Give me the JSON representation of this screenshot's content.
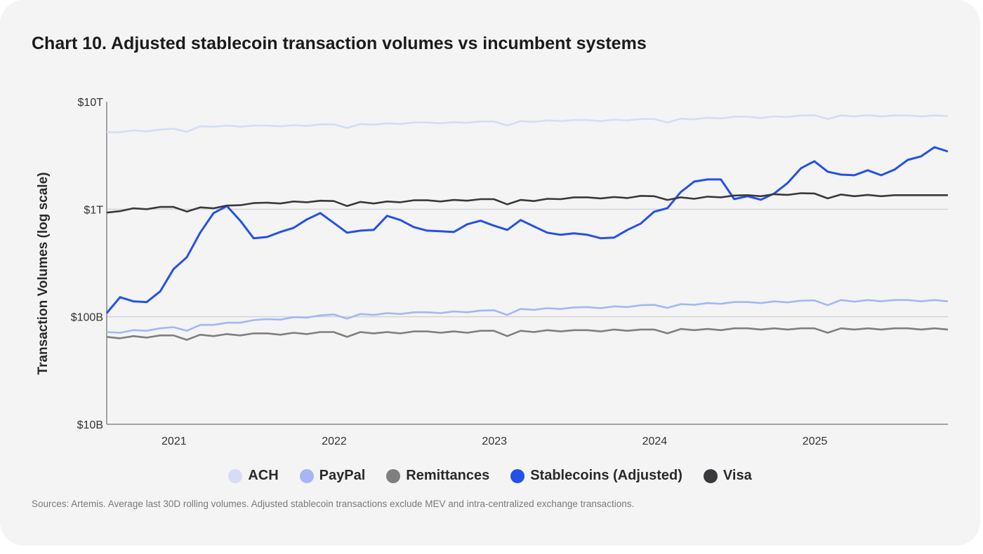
{
  "chart_data": {
    "type": "line",
    "title": "Chart 10. Adjusted stablecoin transaction volumes vs incumbent systems",
    "ylabel": "Transaction Volumes (log scale)",
    "xlabel": "",
    "yscale": "log",
    "ylim_billions": [
      10,
      10000
    ],
    "y_ticks": [
      {
        "value": 10,
        "label": "$10B"
      },
      {
        "value": 100,
        "label": "$100B"
      },
      {
        "value": 1000,
        "label": "$1T"
      },
      {
        "value": 10000,
        "label": "$10T"
      }
    ],
    "x_ticks": [
      {
        "value": 2021,
        "label": "2021"
      },
      {
        "value": 2022,
        "label": "2022"
      },
      {
        "value": 2023,
        "label": "2023"
      },
      {
        "value": 2024,
        "label": "2024"
      },
      {
        "value": 2025,
        "label": "2025"
      }
    ],
    "xlim": [
      2020.58,
      2025.83
    ],
    "x_start": 2020.58,
    "x_step_years": 0.08333,
    "unit": "USD billions",
    "grid": "horizontal",
    "legend_position": "bottom",
    "series": [
      {
        "name": "ACH",
        "color": "#d6dcf4",
        "values": [
          5200,
          5200,
          5400,
          5300,
          5500,
          5600,
          5250,
          5900,
          5850,
          6000,
          5850,
          6000,
          6000,
          5900,
          6050,
          5950,
          6150,
          6150,
          5700,
          6200,
          6100,
          6300,
          6200,
          6400,
          6400,
          6300,
          6450,
          6350,
          6550,
          6550,
          6000,
          6600,
          6500,
          6700,
          6600,
          6750,
          6750,
          6600,
          6800,
          6700,
          6900,
          6900,
          6400,
          6950,
          6850,
          7100,
          7000,
          7250,
          7250,
          7050,
          7300,
          7200,
          7450,
          7500,
          6900,
          7450,
          7300,
          7500,
          7300,
          7450,
          7450,
          7300,
          7450,
          7350
        ]
      },
      {
        "name": "PayPal",
        "color": "#a4b7f4",
        "values": [
          72,
          71,
          75,
          74,
          78,
          80,
          74,
          84,
          84,
          88,
          88,
          93,
          95,
          94,
          99,
          98,
          103,
          105,
          96,
          106,
          104,
          108,
          106,
          110,
          110,
          108,
          112,
          110,
          114,
          115,
          104,
          118,
          116,
          120,
          118,
          122,
          123,
          120,
          125,
          123,
          128,
          129,
          121,
          131,
          129,
          134,
          132,
          137,
          137,
          134,
          139,
          136,
          141,
          142,
          128,
          143,
          138,
          143,
          139,
          143,
          143,
          139,
          143,
          139
        ]
      },
      {
        "name": "Remittances",
        "color": "#7f7f7f",
        "values": [
          65,
          63,
          66,
          64,
          67,
          67,
          61,
          68,
          66,
          69,
          67,
          70,
          70,
          68,
          71,
          69,
          72,
          72,
          65,
          72,
          70,
          72,
          70,
          73,
          73,
          71,
          73,
          71,
          74,
          74,
          66,
          74,
          72,
          75,
          73,
          75,
          75,
          73,
          76,
          74,
          76,
          76,
          70,
          77,
          75,
          77,
          75,
          78,
          78,
          76,
          78,
          76,
          78,
          78,
          71,
          78,
          76,
          78,
          76,
          78,
          78,
          76,
          78,
          76
        ]
      },
      {
        "name": "Stablecoins (Adjusted)",
        "color": "#2451e6",
        "values": [
          108,
          152,
          139,
          137,
          172,
          277,
          358,
          605,
          920,
          1070,
          782,
          537,
          551,
          614,
          671,
          805,
          920,
          746,
          605,
          632,
          642,
          867,
          793,
          682,
          632,
          623,
          614,
          724,
          782,
          703,
          642,
          793,
          692,
          605,
          578,
          596,
          578,
          537,
          545,
          642,
          735,
          948,
          1023,
          1445,
          1808,
          1892,
          1892,
          1242,
          1321,
          1225,
          1403,
          1754,
          2404,
          2793,
          2234,
          2099,
          2070,
          2301,
          2070,
          2333,
          2877,
          3105,
          3776,
          3443
        ]
      },
      {
        "name": "Visa",
        "color": "#39393b",
        "values": [
          930,
          960,
          1020,
          1000,
          1050,
          1050,
          950,
          1040,
          1020,
          1080,
          1090,
          1140,
          1150,
          1130,
          1180,
          1160,
          1200,
          1190,
          1070,
          1170,
          1130,
          1180,
          1160,
          1210,
          1210,
          1180,
          1220,
          1200,
          1240,
          1240,
          1110,
          1220,
          1190,
          1250,
          1240,
          1290,
          1290,
          1260,
          1300,
          1270,
          1330,
          1320,
          1220,
          1290,
          1250,
          1310,
          1290,
          1340,
          1350,
          1320,
          1380,
          1360,
          1410,
          1400,
          1260,
          1370,
          1320,
          1360,
          1320,
          1350,
          1350,
          1350,
          1350,
          1350
        ]
      }
    ]
  },
  "sources": "Sources: Artemis. Average last 30D rolling volumes. Adjusted stablecoin transactions exclude MEV and intra-centralized exchange transactions."
}
